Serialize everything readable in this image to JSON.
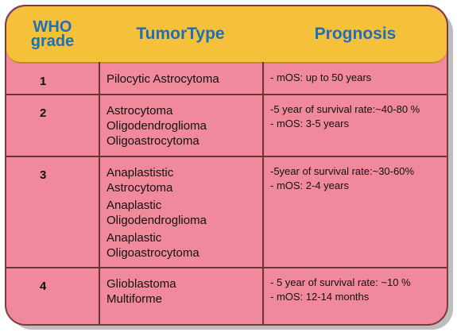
{
  "table": {
    "headers": {
      "grade": [
        "WHO",
        "grade"
      ],
      "tumor_type": "TumorType",
      "prognosis": "Prognosis"
    },
    "rows": [
      {
        "grade": "1",
        "tumor_types": [
          "Pilocytic Astrocytoma"
        ],
        "prognosis": [
          "- mOS: up to 50 years"
        ]
      },
      {
        "grade": "2",
        "tumor_types": [
          "Astrocytoma",
          "Oligodendroglioma",
          "Oligoastrocytoma"
        ],
        "prognosis": [
          "-5 year of survival rate:~40-80 %",
          "- mOS: 3-5 years"
        ]
      },
      {
        "grade": "3",
        "tumor_types": [
          "Anaplastistic",
          "Astrocytoma",
          "Anaplastic",
          "Oligodendroglioma",
          "Anaplastic",
          "Oligoastrocytoma"
        ],
        "prognosis": [
          "-5year of survival rate:~30-60%",
          "- mOS: 2-4 years"
        ]
      },
      {
        "grade": "4",
        "tumor_types": [
          "Glioblastoma",
          "Multiforme"
        ],
        "prognosis": [
          "- 5 year of survival rate: ~10 %",
          "- mOS: 12-14 months"
        ]
      }
    ]
  }
}
